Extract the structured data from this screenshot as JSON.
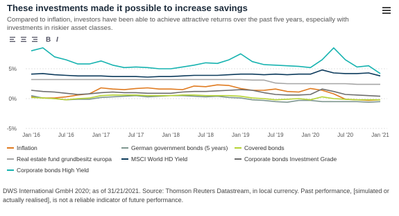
{
  "chart_data": {
    "type": "line",
    "title": "These investments made it possible to increase savings",
    "subtitle": "Compared to inflation, investors have been able to achieve attractive returns over the past five years, especially with investments in riskier asset classes.",
    "categories": [
      "Jan '16",
      null,
      null,
      "Jul '16",
      null,
      null,
      "Jan '17",
      null,
      null,
      "Jul '17",
      null,
      null,
      "Jan '18",
      null,
      null,
      "Jul '18",
      null,
      null,
      "Jan '19",
      null,
      null,
      "Jul '19",
      null,
      null,
      "Jan '20",
      null,
      null,
      "Jul '20",
      null,
      null,
      "Jan '21"
    ],
    "ylim": [
      -5,
      10
    ],
    "yticks": [
      {
        "value": -5,
        "label": "-5%"
      },
      {
        "value": 0,
        "label": "0%"
      },
      {
        "value": 5,
        "label": "5%"
      }
    ],
    "grid": true,
    "series": [
      {
        "name": "Inflation",
        "color": "#e07b20",
        "values": [
          0.3,
          0.1,
          0.1,
          0.3,
          0.6,
          0.8,
          1.8,
          1.6,
          1.5,
          1.7,
          1.8,
          1.6,
          1.6,
          1.5,
          2.1,
          2.0,
          2.3,
          2.2,
          1.7,
          1.4,
          1.4,
          1.6,
          1.2,
          1.1,
          1.7,
          1.4,
          0.8,
          -0.1,
          -0.2,
          -0.3,
          -0.2
        ]
      },
      {
        "name": "German government bonds (5 years)",
        "color": "#7f9790",
        "values": [
          0.5,
          0.1,
          0.0,
          -0.2,
          -0.1,
          -0.1,
          0.2,
          0.3,
          0.4,
          0.5,
          0.3,
          0.4,
          0.5,
          0.5,
          0.4,
          0.3,
          0.4,
          0.2,
          0.1,
          -0.2,
          -0.3,
          -0.5,
          -0.6,
          -0.3,
          -0.3,
          -0.5,
          -0.5,
          -0.5,
          -0.5,
          -0.6,
          -0.5
        ]
      },
      {
        "name": "Covered bonds",
        "color": "#b5d334",
        "values": [
          0.2,
          0.1,
          0.0,
          -0.2,
          0.0,
          0.1,
          0.5,
          0.6,
          0.6,
          0.6,
          0.5,
          0.5,
          0.5,
          0.6,
          0.6,
          0.5,
          0.5,
          0.5,
          0.4,
          0.1,
          0.0,
          -0.2,
          -0.1,
          0.0,
          -0.2,
          0.3,
          0.0,
          -0.1,
          -0.2,
          -0.2,
          -0.2
        ]
      },
      {
        "name": "Real estate fund grundbesitz europa",
        "color": "#a6a6a6",
        "values": [
          3.2,
          3.2,
          3.2,
          3.2,
          3.2,
          3.2,
          3.2,
          3.2,
          3.2,
          3.2,
          3.2,
          3.2,
          3.2,
          3.2,
          3.2,
          3.2,
          3.2,
          3.2,
          3.2,
          3.1,
          3.1,
          2.6,
          2.5,
          2.5,
          2.5,
          2.5,
          2.5,
          2.5,
          2.4,
          2.4,
          2.4
        ]
      },
      {
        "name": "MSCI World HD Yield",
        "color": "#0d3b5c",
        "values": [
          4.1,
          4.2,
          4.0,
          3.9,
          3.8,
          3.8,
          3.8,
          3.7,
          3.7,
          3.7,
          3.6,
          3.7,
          3.7,
          3.8,
          3.9,
          3.9,
          3.9,
          4.0,
          4.1,
          4.1,
          4.0,
          4.1,
          4.0,
          4.1,
          4.1,
          4.8,
          4.3,
          4.2,
          4.2,
          4.3,
          3.8
        ]
      },
      {
        "name": "Corporate bonds Investment Grade",
        "color": "#6e6e6e",
        "values": [
          1.4,
          1.2,
          1.1,
          0.9,
          0.7,
          0.8,
          1.0,
          1.1,
          1.0,
          1.0,
          0.9,
          0.9,
          0.9,
          1.1,
          1.2,
          1.2,
          1.3,
          1.4,
          1.5,
          1.4,
          1.0,
          0.7,
          0.6,
          0.6,
          0.7,
          1.6,
          1.2,
          0.7,
          0.6,
          0.5,
          0.4
        ]
      },
      {
        "name": "Corporate bonds High Yield",
        "color": "#17b3b0",
        "values": [
          8.0,
          8.5,
          7.0,
          6.5,
          5.8,
          5.8,
          6.3,
          5.6,
          5.2,
          5.3,
          5.2,
          5.0,
          5.0,
          5.3,
          5.6,
          6.0,
          5.9,
          6.5,
          7.5,
          6.2,
          5.7,
          5.6,
          5.5,
          5.4,
          5.2,
          6.5,
          8.5,
          6.5,
          5.3,
          5.5,
          4.2
        ]
      }
    ]
  },
  "toolbar": [
    "B",
    "I"
  ],
  "source": "DWS International GmbH 2020; as of 31/21/2021. Source: Thomson Reuters Datastream, in local currency. Past performance, [simulated or actually realised], is not a reliable indicator of future performance."
}
